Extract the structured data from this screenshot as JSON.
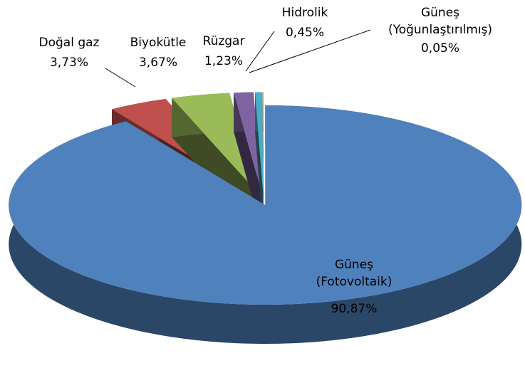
{
  "chart_data": {
    "type": "pie3d",
    "categories": [
      "Güneş\n(Fotovoltaik)",
      "Doğal gaz",
      "Biyokütle",
      "Rüzgar",
      "Hidrolik",
      "Güneş\n(Yoğunlaştırılmış)"
    ],
    "values": [
      90.87,
      3.73,
      3.67,
      1.23,
      0.45,
      0.05
    ],
    "value_labels": [
      "90,87%",
      "3,73%",
      "3,67%",
      "1,23%",
      "0,45%",
      "0,05%"
    ],
    "colors": [
      "#4f81bd",
      "#c0504d",
      "#9bbb59",
      "#8064a2",
      "#4bacc6",
      "#f79646"
    ]
  }
}
